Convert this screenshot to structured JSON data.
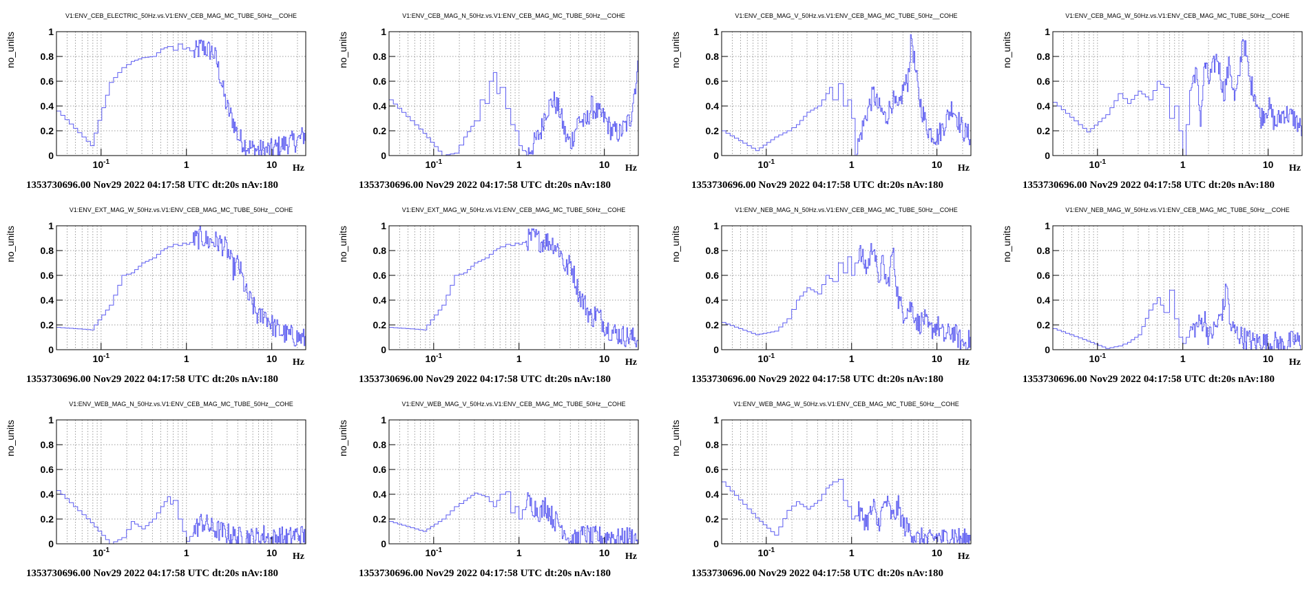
{
  "chart_data": [
    {
      "type": "line",
      "title": "V1:ENV_CEB_ELECTRIC_50Hz.vs.V1:ENV_CEB_MAG_MC_TUBE_50Hz__COHE",
      "ylabel": "no_units",
      "xlabel": "Hz",
      "xscale": "log",
      "xlim": [
        0.03,
        25
      ],
      "ylim": [
        0,
        1
      ],
      "yticks": [
        "0",
        "0.2",
        "0.4",
        "0.6",
        "0.8",
        "1"
      ],
      "xticks": [
        {
          "label": "10",
          "exp": "-1"
        },
        {
          "label": "1"
        },
        {
          "label": "10"
        }
      ],
      "footer": "1353730696.00 Nov29 2022 04:17:58 UTC dt:20s nAv:180",
      "x": [
        0.03,
        0.075,
        0.125,
        0.175,
        0.225,
        0.3,
        0.4,
        0.5,
        0.6,
        0.7,
        0.8,
        0.9,
        1.0,
        1.2,
        1.5,
        1.8,
        2.0,
        2.2,
        2.5,
        2.8,
        3.0,
        3.5,
        4.0,
        5.0,
        6.0,
        8.0,
        10,
        15,
        20,
        25
      ],
      "values": [
        0.36,
        0.08,
        0.59,
        0.71,
        0.76,
        0.79,
        0.8,
        0.86,
        0.88,
        0.85,
        0.9,
        0.86,
        0.87,
        0.82,
        0.88,
        0.85,
        0.84,
        0.78,
        0.62,
        0.45,
        0.38,
        0.28,
        0.15,
        0.08,
        0.05,
        0.04,
        0.05,
        0.1,
        0.12,
        0.18
      ]
    },
    {
      "type": "line",
      "title": "V1:ENV_CEB_MAG_N_50Hz.vs.V1:ENV_CEB_MAG_MC_TUBE_50Hz__COHE",
      "ylabel": "no_units",
      "xlabel": "Hz",
      "xscale": "log",
      "xlim": [
        0.03,
        25
      ],
      "ylim": [
        0,
        1
      ],
      "yticks": [
        "0",
        "0.2",
        "0.4",
        "0.6",
        "0.8",
        "1"
      ],
      "xticks": [
        {
          "label": "10",
          "exp": "-1"
        },
        {
          "label": "1"
        },
        {
          "label": "10"
        }
      ],
      "footer": "1353730696.00 Nov29 2022 04:17:58 UTC dt:20s nAv:180",
      "x": [
        0.03,
        0.075,
        0.125,
        0.175,
        0.225,
        0.3,
        0.35,
        0.4,
        0.45,
        0.5,
        0.55,
        0.6,
        0.7,
        0.8,
        0.9,
        1.0,
        1.2,
        1.5,
        1.8,
        2.0,
        2.5,
        3.0,
        3.5,
        4.0,
        5.0,
        6.0,
        7.0,
        8.0,
        10,
        12,
        15,
        18,
        20,
        22,
        25
      ],
      "values": [
        0.45,
        0.18,
        0.0,
        0.02,
        0.15,
        0.28,
        0.45,
        0.42,
        0.6,
        0.67,
        0.5,
        0.55,
        0.38,
        0.25,
        0.2,
        0.08,
        0.0,
        0.1,
        0.2,
        0.35,
        0.45,
        0.35,
        0.15,
        0.1,
        0.3,
        0.25,
        0.4,
        0.35,
        0.3,
        0.2,
        0.18,
        0.25,
        0.3,
        0.5,
        0.73
      ]
    },
    {
      "type": "line",
      "title": "V1:ENV_CEB_MAG_V_50Hz.vs.V1:ENV_CEB_MAG_MC_TUBE_50Hz__COHE",
      "ylabel": "no_units",
      "xlabel": "Hz",
      "xscale": "log",
      "xlim": [
        0.03,
        25
      ],
      "ylim": [
        0,
        1
      ],
      "yticks": [
        "0",
        "0.2",
        "0.4",
        "0.6",
        "0.8",
        "1"
      ],
      "xticks": [
        {
          "label": "10",
          "exp": "-1"
        },
        {
          "label": "1"
        },
        {
          "label": "10"
        }
      ],
      "footer": "1353730696.00 Nov29 2022 04:17:58 UTC dt:20s nAv:180",
      "x": [
        0.03,
        0.075,
        0.125,
        0.175,
        0.225,
        0.3,
        0.4,
        0.5,
        0.55,
        0.6,
        0.7,
        0.8,
        0.9,
        1.0,
        1.1,
        1.3,
        1.5,
        1.8,
        2.0,
        2.5,
        3.0,
        3.5,
        4.0,
        4.5,
        5.0,
        5.5,
        6.0,
        7.0,
        8.0,
        10,
        12,
        15,
        20,
        25
      ],
      "values": [
        0.2,
        0.04,
        0.15,
        0.2,
        0.25,
        0.35,
        0.4,
        0.5,
        0.55,
        0.45,
        0.58,
        0.4,
        0.45,
        0.3,
        0.0,
        0.2,
        0.35,
        0.5,
        0.4,
        0.3,
        0.45,
        0.35,
        0.55,
        0.6,
        0.96,
        0.7,
        0.5,
        0.3,
        0.2,
        0.15,
        0.25,
        0.4,
        0.2,
        0.15
      ]
    },
    {
      "type": "line",
      "title": "V1:ENV_CEB_MAG_W_50Hz.vs.V1:ENV_CEB_MAG_MC_TUBE_50Hz__COHE",
      "ylabel": "no_units",
      "xlabel": "Hz",
      "xscale": "log",
      "xlim": [
        0.03,
        25
      ],
      "ylim": [
        0,
        1
      ],
      "yticks": [
        "0",
        "0.2",
        "0.4",
        "0.6",
        "0.8",
        "1"
      ],
      "xticks": [
        {
          "label": "10",
          "exp": "-1"
        },
        {
          "label": "1"
        },
        {
          "label": "10"
        }
      ],
      "footer": "1353730696.00 Nov29 2022 04:17:58 UTC dt:20s nAv:180",
      "x": [
        0.03,
        0.075,
        0.125,
        0.175,
        0.225,
        0.3,
        0.4,
        0.5,
        0.6,
        0.7,
        0.8,
        0.9,
        1.0,
        1.2,
        1.4,
        1.6,
        1.8,
        2.0,
        2.5,
        3.0,
        3.5,
        4.0,
        4.5,
        5.0,
        5.5,
        6.0,
        7.0,
        8.0,
        10,
        12,
        15,
        20,
        25
      ],
      "values": [
        0.43,
        0.19,
        0.33,
        0.5,
        0.42,
        0.52,
        0.45,
        0.6,
        0.55,
        0.3,
        0.4,
        0.2,
        0.0,
        0.5,
        0.7,
        0.3,
        0.75,
        0.6,
        0.8,
        0.5,
        0.75,
        0.45,
        0.6,
        0.98,
        0.8,
        0.6,
        0.5,
        0.3,
        0.4,
        0.25,
        0.35,
        0.3,
        0.2
      ]
    },
    {
      "type": "line",
      "title": "V1:ENV_EXT_MAG_W_50Hz.vs.V1:ENV_CEB_MAG_MC_TUBE_50Hz__COHE",
      "ylabel": "no_units",
      "xlabel": "Hz",
      "xscale": "log",
      "xlim": [
        0.03,
        25
      ],
      "ylim": [
        0,
        1
      ],
      "yticks": [
        "0",
        "0.2",
        "0.4",
        "0.6",
        "0.8",
        "1"
      ],
      "xticks": [
        {
          "label": "10",
          "exp": "-1"
        },
        {
          "label": "1"
        },
        {
          "label": "10"
        }
      ],
      "footer": "1353730696.00 Nov29 2022 04:17:58 UTC dt:20s nAv:180",
      "x": [
        0.03,
        0.075,
        0.125,
        0.175,
        0.225,
        0.3,
        0.4,
        0.5,
        0.6,
        0.7,
        0.8,
        0.9,
        1.0,
        1.2,
        1.5,
        1.8,
        2.0,
        2.5,
        3.0,
        3.5,
        4.0,
        5.0,
        6.0,
        7.0,
        8.0,
        10,
        12,
        15,
        20,
        25
      ],
      "values": [
        0.18,
        0.16,
        0.36,
        0.6,
        0.62,
        0.7,
        0.74,
        0.8,
        0.83,
        0.85,
        0.84,
        0.86,
        0.85,
        0.88,
        0.91,
        0.87,
        0.88,
        0.86,
        0.8,
        0.65,
        0.7,
        0.45,
        0.35,
        0.25,
        0.3,
        0.2,
        0.15,
        0.12,
        0.1,
        0.08
      ]
    },
    {
      "type": "line",
      "title": "V1:ENV_EXT_MAG_W_50Hz.vs.V1:ENV_CEB_MAG_MC_TUBE_50Hz__COHE",
      "ylabel": "no_units",
      "xlabel": "Hz",
      "xscale": "log",
      "xlim": [
        0.03,
        25
      ],
      "ylim": [
        0,
        1
      ],
      "yticks": [
        "0",
        "0.2",
        "0.4",
        "0.6",
        "0.8",
        "1"
      ],
      "xticks": [
        {
          "label": "10",
          "exp": "-1"
        },
        {
          "label": "1"
        },
        {
          "label": "10"
        }
      ],
      "footer": "1353730696.00 Nov29 2022 04:17:58 UTC dt:20s nAv:180",
      "x": [
        0.03,
        0.075,
        0.125,
        0.175,
        0.225,
        0.3,
        0.4,
        0.5,
        0.6,
        0.7,
        0.8,
        0.9,
        1.0,
        1.2,
        1.5,
        1.8,
        2.0,
        2.5,
        3.0,
        3.5,
        4.0,
        5.0,
        6.0,
        7.0,
        8.0,
        10,
        12,
        15,
        20,
        25
      ],
      "values": [
        0.18,
        0.16,
        0.36,
        0.6,
        0.62,
        0.7,
        0.74,
        0.8,
        0.83,
        0.85,
        0.84,
        0.86,
        0.85,
        0.88,
        0.91,
        0.87,
        0.88,
        0.86,
        0.8,
        0.65,
        0.7,
        0.45,
        0.35,
        0.25,
        0.3,
        0.2,
        0.15,
        0.12,
        0.1,
        0.08
      ]
    },
    {
      "type": "line",
      "title": "V1:ENV_NEB_MAG_N_50Hz.vs.V1:ENV_CEB_MAG_MC_TUBE_50Hz__COHE",
      "ylabel": "no_units",
      "xlabel": "Hz",
      "xscale": "log",
      "xlim": [
        0.03,
        25
      ],
      "ylim": [
        0,
        1
      ],
      "yticks": [
        "0",
        "0.2",
        "0.4",
        "0.6",
        "0.8",
        "1"
      ],
      "xticks": [
        {
          "label": "10",
          "exp": "-1"
        },
        {
          "label": "1"
        },
        {
          "label": "10"
        }
      ],
      "footer": "1353730696.00 Nov29 2022 04:17:58 UTC dt:20s nAv:180",
      "x": [
        0.03,
        0.075,
        0.125,
        0.175,
        0.225,
        0.3,
        0.4,
        0.5,
        0.6,
        0.7,
        0.8,
        0.9,
        1.0,
        1.2,
        1.5,
        1.8,
        2.0,
        2.3,
        2.6,
        3.0,
        3.5,
        4.0,
        5.0,
        6.0,
        7.0,
        8.0,
        10,
        12,
        15,
        20,
        25
      ],
      "values": [
        0.22,
        0.12,
        0.15,
        0.25,
        0.4,
        0.5,
        0.45,
        0.6,
        0.55,
        0.7,
        0.62,
        0.75,
        0.6,
        0.8,
        0.65,
        0.88,
        0.55,
        0.7,
        0.5,
        0.8,
        0.4,
        0.3,
        0.35,
        0.2,
        0.25,
        0.15,
        0.2,
        0.1,
        0.15,
        0.05,
        0.08
      ]
    },
    {
      "type": "line",
      "title": "V1:ENV_NEB_MAG_W_50Hz.vs.V1:ENV_CEB_MAG_MC_TUBE_50Hz__COHE",
      "ylabel": "no_units",
      "xlabel": "Hz",
      "xscale": "log",
      "xlim": [
        0.03,
        25
      ],
      "ylim": [
        0,
        1
      ],
      "yticks": [
        "0",
        "0.2",
        "0.4",
        "0.6",
        "0.8",
        "1"
      ],
      "xticks": [
        {
          "label": "10",
          "exp": "-1"
        },
        {
          "label": "1"
        },
        {
          "label": "10"
        }
      ],
      "footer": "1353730696.00 Nov29 2022 04:17:58 UTC dt:20s nAv:180",
      "x": [
        0.03,
        0.075,
        0.125,
        0.175,
        0.225,
        0.3,
        0.4,
        0.5,
        0.6,
        0.7,
        0.8,
        0.9,
        1.0,
        1.2,
        1.5,
        1.8,
        2.0,
        2.5,
        3.0,
        3.3,
        3.5,
        4.0,
        5.0,
        6.0,
        7.0,
        8.0,
        10,
        12,
        15,
        20,
        25
      ],
      "values": [
        0.17,
        0.07,
        0.01,
        0.03,
        0.06,
        0.12,
        0.32,
        0.42,
        0.3,
        0.48,
        0.25,
        0.1,
        0.05,
        0.15,
        0.2,
        0.25,
        0.1,
        0.2,
        0.35,
        0.55,
        0.2,
        0.15,
        0.1,
        0.08,
        0.05,
        0.08,
        0.04,
        0.06,
        0.03,
        0.08,
        0.05
      ]
    },
    {
      "type": "line",
      "title": "V1:ENV_WEB_MAG_N_50Hz.vs.V1:ENV_CEB_MAG_MC_TUBE_50Hz__COHE",
      "ylabel": "no_units",
      "xlabel": "Hz",
      "xscale": "log",
      "xlim": [
        0.03,
        25
      ],
      "ylim": [
        0,
        1
      ],
      "yticks": [
        "0",
        "0.2",
        "0.4",
        "0.6",
        "0.8",
        "1"
      ],
      "xticks": [
        {
          "label": "10",
          "exp": "-1"
        },
        {
          "label": "1"
        },
        {
          "label": "10"
        }
      ],
      "footer": "1353730696.00 Nov29 2022 04:17:58 UTC dt:20s nAv:180",
      "x": [
        0.03,
        0.075,
        0.125,
        0.175,
        0.225,
        0.3,
        0.4,
        0.5,
        0.6,
        0.65,
        0.7,
        0.8,
        0.9,
        1.0,
        1.2,
        1.5,
        1.8,
        2.0,
        2.5,
        3.0,
        4.0,
        5.0,
        6.0,
        7.0,
        8.0,
        10,
        12,
        15,
        20,
        25
      ],
      "values": [
        0.43,
        0.17,
        0.0,
        0.05,
        0.18,
        0.12,
        0.2,
        0.3,
        0.38,
        0.32,
        0.35,
        0.2,
        0.1,
        0.02,
        0.1,
        0.18,
        0.14,
        0.12,
        0.1,
        0.08,
        0.05,
        0.06,
        0.04,
        0.05,
        0.07,
        0.03,
        0.06,
        0.04,
        0.08,
        0.05
      ]
    },
    {
      "type": "line",
      "title": "V1:ENV_WEB_MAG_V_50Hz.vs.V1:ENV_CEB_MAG_MC_TUBE_50Hz__COHE",
      "ylabel": "no_units",
      "xlabel": "Hz",
      "xscale": "log",
      "xlim": [
        0.03,
        25
      ],
      "ylim": [
        0,
        1
      ],
      "yticks": [
        "0",
        "0.2",
        "0.4",
        "0.6",
        "0.8",
        "1"
      ],
      "xticks": [
        {
          "label": "10",
          "exp": "-1"
        },
        {
          "label": "1"
        },
        {
          "label": "10"
        }
      ],
      "footer": "1353730696.00 Nov29 2022 04:17:58 UTC dt:20s nAv:180",
      "x": [
        0.03,
        0.075,
        0.125,
        0.175,
        0.225,
        0.3,
        0.4,
        0.5,
        0.6,
        0.7,
        0.8,
        0.9,
        1.0,
        1.2,
        1.5,
        1.8,
        2.0,
        2.5,
        3.0,
        3.5,
        4.0,
        5.0,
        6.0,
        7.0,
        8.0,
        10,
        12,
        15,
        20,
        25
      ],
      "values": [
        0.18,
        0.1,
        0.2,
        0.3,
        0.35,
        0.41,
        0.38,
        0.3,
        0.4,
        0.42,
        0.25,
        0.3,
        0.2,
        0.35,
        0.3,
        0.25,
        0.32,
        0.2,
        0.15,
        0.1,
        0.0,
        0.05,
        0.08,
        0.04,
        0.06,
        0.05,
        0.07,
        0.03,
        0.06,
        0.04
      ]
    },
    {
      "type": "line",
      "title": "V1:ENV_WEB_MAG_W_50Hz.vs.V1:ENV_CEB_MAG_MC_TUBE_50Hz__COHE",
      "ylabel": "no_units",
      "xlabel": "Hz",
      "xscale": "log",
      "xlim": [
        0.03,
        25
      ],
      "ylim": [
        0,
        1
      ],
      "yticks": [
        "0",
        "0.2",
        "0.4",
        "0.6",
        "0.8",
        "1"
      ],
      "xticks": [
        {
          "label": "10",
          "exp": "-1"
        },
        {
          "label": "1"
        },
        {
          "label": "10"
        }
      ],
      "footer": "1353730696.00 Nov29 2022 04:17:58 UTC dt:20s nAv:180",
      "x": [
        0.03,
        0.075,
        0.125,
        0.175,
        0.225,
        0.3,
        0.4,
        0.5,
        0.6,
        0.7,
        0.8,
        0.9,
        1.0,
        1.2,
        1.5,
        1.8,
        2.0,
        2.5,
        3.0,
        3.5,
        4.0,
        5.0,
        6.0,
        7.0,
        8.0,
        10,
        12,
        15,
        20,
        25
      ],
      "values": [
        0.5,
        0.21,
        0.07,
        0.27,
        0.34,
        0.28,
        0.35,
        0.45,
        0.5,
        0.52,
        0.35,
        0.3,
        0.2,
        0.25,
        0.18,
        0.3,
        0.15,
        0.35,
        0.2,
        0.3,
        0.15,
        0.1,
        0.03,
        0.05,
        0.02,
        0.06,
        0.04,
        0.08,
        0.03,
        0.05
      ]
    }
  ],
  "colors": {
    "trace": "#5b5bf0",
    "grid": "#9a9a9a",
    "frame": "#000000"
  }
}
